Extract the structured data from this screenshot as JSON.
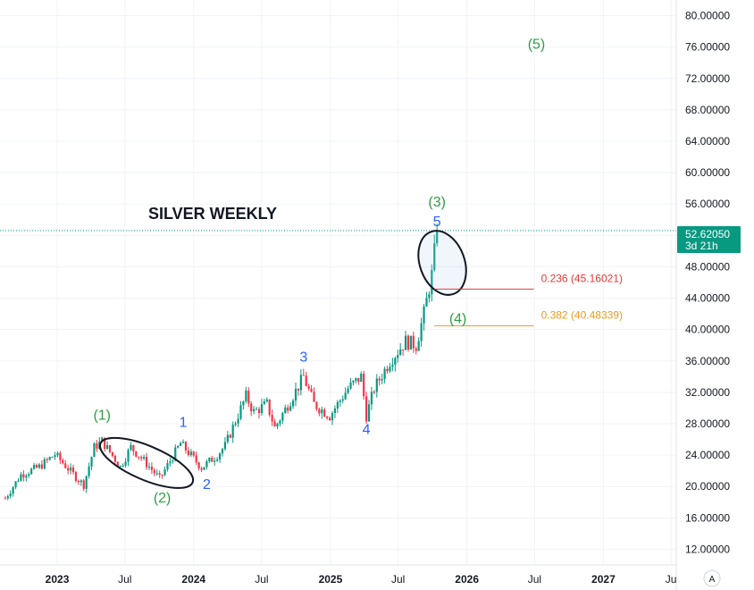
{
  "chart_data": {
    "type": "candlestick",
    "title": "SILVER WEEKLY",
    "ylim": [
      10,
      82
    ],
    "y_ticks": [
      "80.00000",
      "76.00000",
      "72.00000",
      "68.00000",
      "64.00000",
      "60.00000",
      "56.00000",
      "52.00000",
      "48.00000",
      "44.00000",
      "40.00000",
      "36.00000",
      "32.00000",
      "28.00000",
      "24.00000",
      "20.00000",
      "16.00000",
      "12.00000"
    ],
    "y_tick_values": [
      80,
      76,
      72,
      68,
      64,
      60,
      56,
      52,
      48,
      44,
      40,
      36,
      32,
      28,
      24,
      20,
      16,
      12
    ],
    "x_ticks": [
      {
        "label": "2023",
        "date": "2023-01-01",
        "major": true
      },
      {
        "label": "Jul",
        "date": "2023-07-01",
        "major": false
      },
      {
        "label": "2024",
        "date": "2024-01-01",
        "major": true
      },
      {
        "label": "Jul",
        "date": "2024-07-01",
        "major": false
      },
      {
        "label": "2025",
        "date": "2025-01-01",
        "major": true
      },
      {
        "label": "Jul",
        "date": "2025-07-01",
        "major": false
      },
      {
        "label": "2026",
        "date": "2026-01-01",
        "major": true
      },
      {
        "label": "Jul",
        "date": "2026-07-01",
        "major": false
      },
      {
        "label": "2027",
        "date": "2027-01-01",
        "major": true
      },
      {
        "label": "Ju",
        "date": "2027-07-01",
        "major": false
      }
    ],
    "xlim": [
      "2022-08-01",
      "2027-07-15"
    ],
    "grid": true,
    "current_price": {
      "value": "52.62050",
      "countdown": "3d 21h",
      "price": 52.6205,
      "color": "#089981"
    },
    "key_prices": [
      {
        "date": "2022-08-15",
        "close": 18.5
      },
      {
        "date": "2022-09-26",
        "close": 21.5
      },
      {
        "date": "2022-11-14",
        "close": 22.5
      },
      {
        "date": "2022-12-26",
        "close": 24.1
      },
      {
        "date": "2023-02-20",
        "close": 21.2
      },
      {
        "date": "2023-03-13",
        "close": 20.2
      },
      {
        "date": "2023-04-10",
        "close": 25.0
      },
      {
        "date": "2023-05-01",
        "close": 25.8
      },
      {
        "date": "2023-06-19",
        "close": 22.5
      },
      {
        "date": "2023-07-17",
        "close": 25.0
      },
      {
        "date": "2023-08-21",
        "close": 23.3
      },
      {
        "date": "2023-10-02",
        "close": 21.0
      },
      {
        "date": "2023-11-27",
        "close": 25.5
      },
      {
        "date": "2024-01-22",
        "close": 22.4
      },
      {
        "date": "2024-03-04",
        "close": 24.0
      },
      {
        "date": "2024-03-25",
        "close": 25.2
      },
      {
        "date": "2024-05-20",
        "close": 31.5
      },
      {
        "date": "2024-06-10",
        "close": 29.5
      },
      {
        "date": "2024-07-15",
        "close": 30.5
      },
      {
        "date": "2024-08-05",
        "close": 27.5
      },
      {
        "date": "2024-09-16",
        "close": 31.0
      },
      {
        "date": "2024-10-21",
        "close": 34.0
      },
      {
        "date": "2024-11-18",
        "close": 30.5
      },
      {
        "date": "2024-12-30",
        "close": 29.0
      },
      {
        "date": "2025-02-17",
        "close": 32.5
      },
      {
        "date": "2025-03-24",
        "close": 34.0
      },
      {
        "date": "2025-04-07",
        "close": 29.0
      },
      {
        "date": "2025-04-28",
        "close": 32.5
      },
      {
        "date": "2025-06-09",
        "close": 36.0
      },
      {
        "date": "2025-07-21",
        "close": 38.5
      },
      {
        "date": "2025-08-18",
        "close": 38.0
      },
      {
        "date": "2025-09-08",
        "close": 42.0
      },
      {
        "date": "2025-09-29",
        "close": 47.0
      },
      {
        "date": "2025-10-13",
        "close": 52.6205
      }
    ],
    "annotations": [
      {
        "text": "(1)",
        "date": "2023-05-01",
        "price": 28.5,
        "color": "green"
      },
      {
        "text": "(2)",
        "date": "2023-10-09",
        "price": 18.0,
        "color": "green"
      },
      {
        "text": "(3)",
        "date": "2025-10-13",
        "price": 55.7,
        "color": "green"
      },
      {
        "text": "(4)",
        "date": "2025-12-08",
        "price": 40.8,
        "color": "green"
      },
      {
        "text": "(5)",
        "date": "2026-07-06",
        "price": 75.8,
        "color": "green"
      },
      {
        "text": "1",
        "date": "2023-12-04",
        "price": 27.6,
        "color": "blue"
      },
      {
        "text": "2",
        "date": "2024-02-05",
        "price": 19.7,
        "color": "blue"
      },
      {
        "text": "3",
        "date": "2024-10-21",
        "price": 35.9,
        "color": "blue"
      },
      {
        "text": "4",
        "date": "2025-04-07",
        "price": 26.7,
        "color": "blue"
      },
      {
        "text": "5",
        "date": "2025-10-13",
        "price": 53.2,
        "color": "blue"
      }
    ],
    "fib_levels": [
      {
        "label": "0.236 (45.16021)",
        "value": 45.16021,
        "color": "#e53935"
      },
      {
        "label": "0.382 (40.48339)",
        "value": 40.48339,
        "color": "#f09a1a"
      }
    ],
    "fib_start_date": "2025-10-06",
    "fib_end_date": "2026-06-29"
  },
  "toolbar": {
    "auto_scale_label": "A"
  }
}
